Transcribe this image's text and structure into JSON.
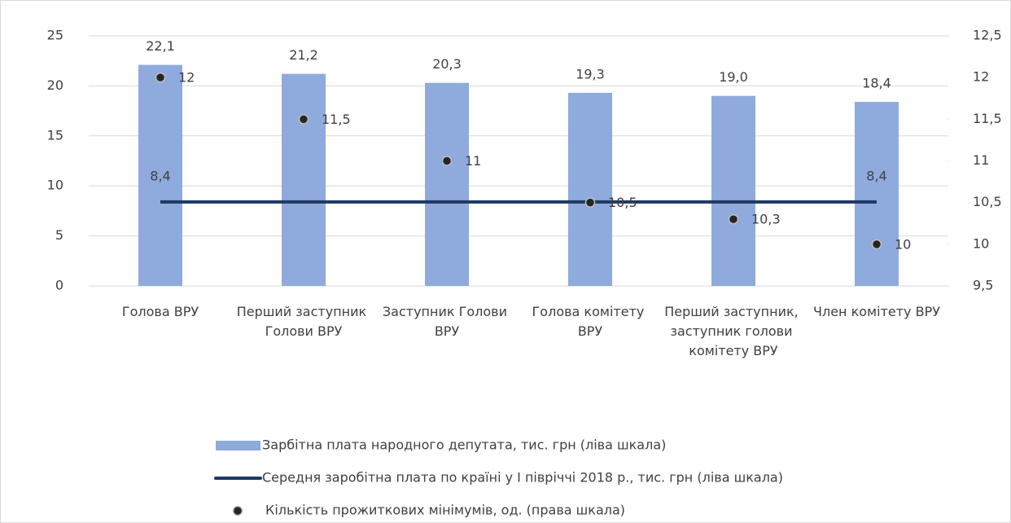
{
  "chart_data": {
    "type": "combo",
    "categories": [
      "Голова ВРУ",
      "Перший заступник Голови ВРУ",
      "Заступник Голови ВРУ",
      "Голова комітету ВРУ",
      "Перший заступник, заступник голови комітету ВРУ",
      "Член комітету ВРУ"
    ],
    "series": [
      {
        "name": "Зарбітна плата народного депутата, тис. грн (ліва шкала)",
        "type": "bar",
        "color": "#8faadc",
        "values": [
          22.1,
          21.2,
          20.3,
          19.3,
          19.0,
          18.4
        ],
        "value_labels": [
          "22,1",
          "21,2",
          "20,3",
          "19,3",
          "19,0",
          "18,4"
        ]
      },
      {
        "name": "Середня заробітна плата по країні у І півріччі 2018 р., тис. грн (ліва шкала)",
        "type": "line",
        "color": "#1f3864",
        "values": [
          8.4,
          8.4,
          8.4,
          8.4,
          8.4,
          8.4
        ],
        "value_labels": [
          "8,4",
          null,
          null,
          null,
          null,
          "8,4"
        ]
      },
      {
        "name": "Кількість прожиткових мінімумів, од. (права шкала)",
        "type": "scatter",
        "color": "#262626",
        "axis": "y2",
        "values": [
          12,
          11.5,
          11,
          10.5,
          10.3,
          10
        ],
        "value_labels": [
          "12",
          "11,5",
          "11",
          "10,5",
          "10,3",
          "10"
        ]
      }
    ],
    "ylim": [
      0,
      25
    ],
    "yticks": [
      0,
      5,
      10,
      15,
      20,
      25
    ],
    "y2lim": [
      9.5,
      12.5
    ],
    "y2ticks": [
      {
        "value": 9.5,
        "label": "9,5"
      },
      10,
      {
        "value": 10.5,
        "label": "10,5"
      },
      11,
      {
        "value": 11.5,
        "label": "11,5"
      },
      12,
      {
        "value": 12.5,
        "label": "12,5"
      }
    ],
    "legend": "bottom"
  }
}
